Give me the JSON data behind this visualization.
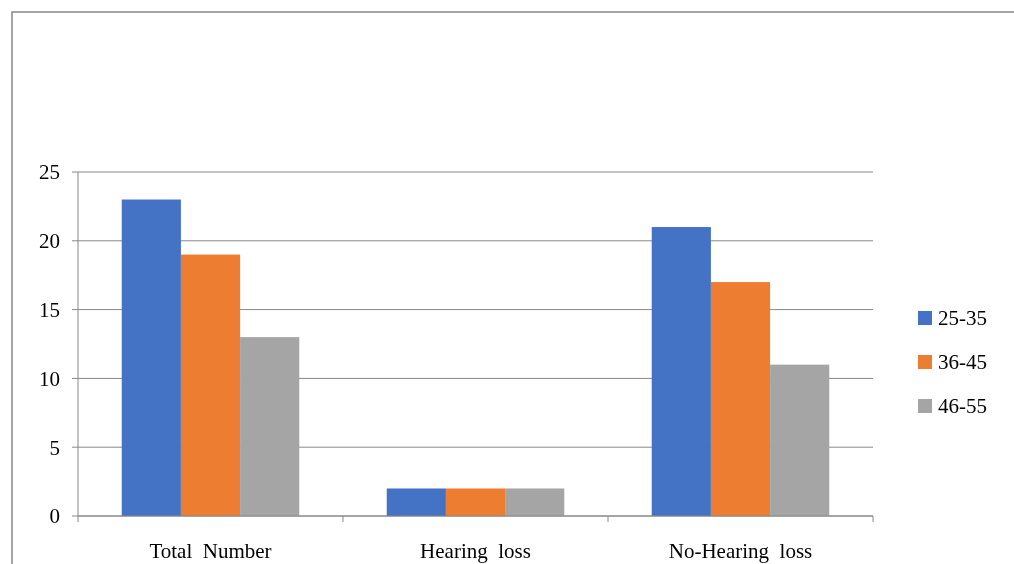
{
  "chart_data": {
    "type": "bar",
    "categories": [
      "Total  Number",
      "Hearing  loss",
      "No-Hearing  loss"
    ],
    "series": [
      {
        "name": "25-35",
        "color": "#4472c4",
        "values": [
          23,
          2,
          21
        ]
      },
      {
        "name": "36-45",
        "color": "#ed7d31",
        "values": [
          19,
          2,
          17
        ]
      },
      {
        "name": "46-55",
        "color": "#a5a5a5",
        "values": [
          13,
          2,
          11
        ]
      }
    ],
    "ylim": [
      0,
      25
    ],
    "yticks": [
      0,
      5,
      10,
      15,
      20,
      25
    ],
    "grid": "y",
    "legend": "right"
  }
}
